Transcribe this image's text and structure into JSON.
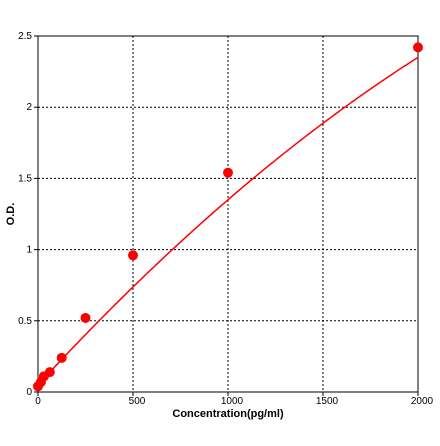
{
  "chart_data": {
    "type": "scatter",
    "title": "",
    "xlabel": "Concentration(pg/ml)",
    "ylabel": "O.D.",
    "xlim": [
      0,
      2000
    ],
    "ylim": [
      0,
      2.5
    ],
    "xticks": [
      0,
      500,
      1000,
      1500,
      2000
    ],
    "xtick_labels": [
      "0",
      "500",
      "1000",
      "1500",
      "2000"
    ],
    "yticks": [
      0,
      0.5,
      1,
      1.5,
      2,
      2.5
    ],
    "ytick_labels": [
      "0",
      "0.5",
      "1",
      "1.5",
      "2",
      "2.5"
    ],
    "grid": true,
    "grid_style": "dotted",
    "legend": "none",
    "series": [
      {
        "points": [
          {
            "x": 0,
            "y": 0.04
          },
          {
            "x": 15.6,
            "y": 0.07
          },
          {
            "x": 31.2,
            "y": 0.11
          },
          {
            "x": 62.5,
            "y": 0.14
          },
          {
            "x": 125,
            "y": 0.24
          },
          {
            "x": 250,
            "y": 0.52
          },
          {
            "x": 500,
            "y": 0.96
          },
          {
            "x": 1000,
            "y": 1.54
          },
          {
            "x": 2000,
            "y": 2.42
          }
        ],
        "curve": {
          "model": "quadratic",
          "a": -1.5e-07,
          "b": 0.00145,
          "c": 0.05
        },
        "color": "#ff0000"
      }
    ]
  }
}
